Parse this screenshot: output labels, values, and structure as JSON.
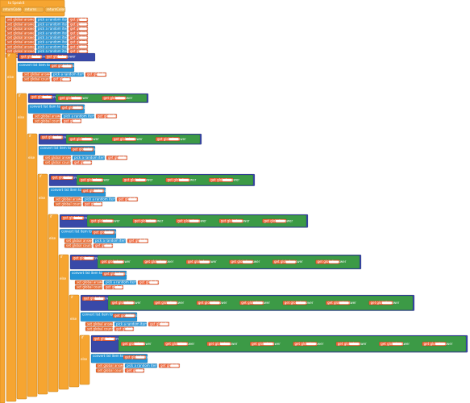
{
  "procedure": {
    "name": "to SpeakIt",
    "labels": [
      "returnCode",
      "returns",
      "returnColor"
    ]
  },
  "init_rows": [
    {
      "set": "set global answer1 to",
      "pick": "pick a random item list",
      "get": "get global colors"
    },
    {
      "set": "set global answer2 to",
      "pick": "pick a random item list",
      "get": "get global colors"
    },
    {
      "set": "set global answer3 to",
      "pick": "pick a random item list",
      "get": "get global colors"
    },
    {
      "set": "set global answer4 to",
      "pick": "pick a random item list",
      "get": "get global colors"
    },
    {
      "set": "set global answer5 to",
      "pick": "pick a random item list",
      "get": "get global colors"
    },
    {
      "set": "set global answer6 to",
      "pick": "pick a random item list",
      "get": "get global colors"
    },
    {
      "set": "set global answer7 to",
      "pick": "pick a random item list",
      "get": "get global colors"
    },
    {
      "set": "set global answer8 to",
      "pick": "pick a random item list",
      "get": "get global colors"
    },
    {
      "set": "set global answer9 to",
      "pick": "pick a random item list",
      "get": "get global colors"
    }
  ],
  "levels": [
    {
      "if": "if",
      "else": "else",
      "test": "get global answer",
      "items": [
        "get global answer"
      ],
      "body": [
        "convert list item to",
        "set global answer to",
        "pick a random item list",
        "get global colors",
        "set global count to",
        "get global count"
      ]
    },
    {
      "if": "if",
      "else": "else",
      "test": "get global answer",
      "items": [
        "get global answer",
        "get global answer"
      ],
      "body": [
        "convert list item to",
        "set global answer to",
        "pick a random item list",
        "get global colors",
        "set global count to",
        "get global count"
      ]
    },
    {
      "if": "if",
      "else": "else",
      "test": "get global answer",
      "items": [
        "get global answer",
        "get global answer",
        "get global answer"
      ],
      "body": [
        "convert list item to",
        "set global answer to",
        "pick a random item list",
        "get global colors",
        "set global count to",
        "get global count"
      ]
    },
    {
      "if": "if",
      "else": "else",
      "test": "get global answer",
      "items": [
        "get global answer",
        "get global answer",
        "get global answer",
        "get global answer"
      ],
      "body": [
        "convert list item to",
        "set global answer to",
        "pick a random item list",
        "get global colors",
        "set global count to",
        "get global count"
      ]
    },
    {
      "if": "if",
      "else": "else",
      "test": "get global answer",
      "items": [
        "get global answer",
        "get global answer",
        "get global answer",
        "get global answer",
        "get global answer"
      ],
      "body": [
        "convert list item to",
        "set global answer to",
        "pick a random item list",
        "get global colors",
        "set global count to",
        "get global count"
      ]
    },
    {
      "if": "if",
      "else": "else",
      "test": "get global answer",
      "items": [
        "get global answer",
        "get global answer",
        "get global answer",
        "get global answer",
        "get global answer",
        "get global answer"
      ],
      "body": [
        "convert list item to",
        "set global answer to",
        "pick a random item list",
        "get global colors",
        "set global count to",
        "get global count"
      ]
    },
    {
      "if": "if",
      "else": "else",
      "test": "get global answer",
      "items": [
        "get global answer",
        "get global answer",
        "get global answer",
        "get global answer",
        "get global answer",
        "get global answer",
        "get global answer"
      ],
      "body": [
        "convert list item to",
        "set global answer to",
        "pick a random item list",
        "get global colors",
        "set global count to",
        "get global count"
      ]
    },
    {
      "if": "if",
      "else": "else",
      "test": "get global answer",
      "items": [
        "get global answer",
        "get global answer",
        "get global answer",
        "get global answer",
        "get global answer",
        "get global answer",
        "get global answer",
        "get global answer"
      ],
      "body": [
        "convert list item to",
        "set global answer to",
        "pick a random item list",
        "get global colors",
        "set global count to",
        "get global count"
      ]
    }
  ]
}
